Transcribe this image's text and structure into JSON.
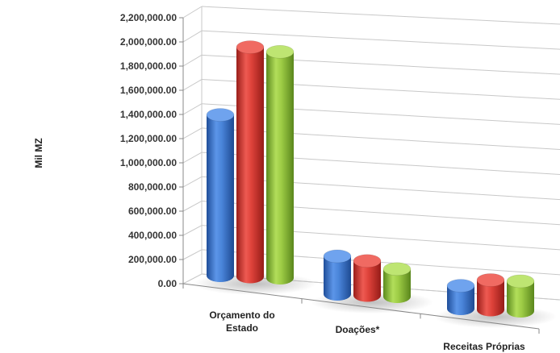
{
  "chart_data": {
    "type": "bar",
    "style": "3d-cylinder",
    "ylabel": "Mil MZ",
    "xlabel": "",
    "title": "",
    "ylim": [
      0,
      2200000
    ],
    "y_ticks": [
      "0.00",
      "200,000.00",
      "400,000.00",
      "600,000.00",
      "800,000.00",
      "1,000,000.00",
      "1,200,000.00",
      "1,400,000.00",
      "1,600,000.00",
      "1,800,000.00",
      "2,000,000.00",
      "2,200,000.00"
    ],
    "y_tick_values": [
      0,
      200000,
      400000,
      600000,
      800000,
      1000000,
      1200000,
      1400000,
      1600000,
      1800000,
      2000000,
      2200000
    ],
    "categories": [
      [
        "Orçamento do",
        "Estado"
      ],
      [
        "Doações*"
      ],
      [
        "Receitas Próprias"
      ]
    ],
    "series": [
      {
        "color": "#3B73C8",
        "values": [
          1400000,
          330000,
          200000
        ]
      },
      {
        "color": "#D43A34",
        "values": [
          2000000,
          300000,
          260000
        ]
      },
      {
        "color": "#8CBF3A",
        "values": [
          1970000,
          240000,
          260000
        ]
      }
    ],
    "grid": true,
    "legend": "none"
  }
}
